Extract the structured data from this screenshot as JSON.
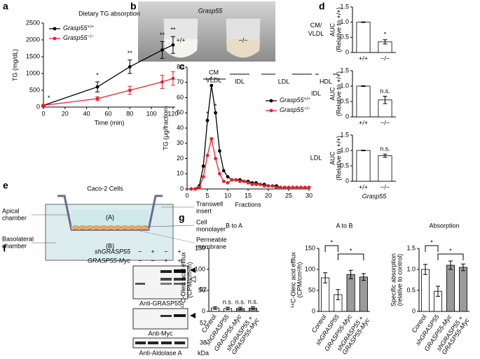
{
  "chart_data": [
    {
      "type": "line",
      "title": "Dietary TG absorption",
      "xlabel": "Time (min)",
      "ylabel": "TG (mg/dL)",
      "x": [
        0,
        50,
        80,
        110,
        120
      ],
      "xlim": [
        0,
        122
      ],
      "xticks": [
        0,
        20,
        40,
        60,
        80,
        100,
        120
      ],
      "ylim": [
        0,
        2500
      ],
      "yticks": [
        0,
        500,
        1000,
        1500,
        2000,
        2500
      ],
      "legend": "upper left",
      "series": [
        {
          "name": "Grasp55",
          "genotype": "+/+",
          "color": "#000000",
          "values": [
            50,
            600,
            1200,
            1700,
            1850
          ],
          "errors": [
            20,
            150,
            200,
            250,
            250
          ]
        },
        {
          "name": "Grasp55",
          "genotype": "−/−",
          "color": "#e8202a",
          "values": [
            50,
            250,
            500,
            750,
            850
          ],
          "errors": [
            20,
            60,
            120,
            200,
            200
          ]
        }
      ],
      "annotations": [
        {
          "x": 5,
          "text": "*"
        },
        {
          "x": 50,
          "text": "*"
        },
        {
          "x": 80,
          "text": "**"
        },
        {
          "x": 110,
          "text": "**"
        },
        {
          "x": 120,
          "text": "**"
        }
      ]
    },
    {
      "type": "line",
      "xlabel": "Fractions",
      "ylabel": "TG (µg/fraction)",
      "x": [
        1,
        2,
        3,
        4,
        5,
        6,
        7,
        8,
        9,
        10,
        11,
        12,
        13,
        14,
        15,
        16,
        17,
        18,
        19,
        20,
        21,
        22,
        23,
        24,
        25,
        26,
        27,
        28,
        29,
        30
      ],
      "xlim": [
        0,
        30
      ],
      "xticks": [
        0,
        5,
        10,
        15,
        20,
        25,
        30
      ],
      "ylim": [
        0,
        80
      ],
      "yticks": [
        0,
        10,
        20,
        30,
        40,
        50,
        60,
        70,
        80
      ],
      "legend": "right",
      "region_labels": [
        "CM",
        "VLDL",
        "IDL",
        "LDL",
        "HDL"
      ],
      "series": [
        {
          "name": "Grasp55",
          "genotype": "+/+",
          "color": "#000000",
          "values": [
            0,
            0,
            2,
            15,
            45,
            68,
            50,
            25,
            12,
            8,
            6,
            6,
            6,
            5,
            5,
            4,
            4,
            3,
            3,
            2,
            2,
            2,
            1,
            1,
            1,
            1,
            1,
            1,
            1,
            1
          ]
        },
        {
          "name": "Grasp55",
          "genotype": "−/−",
          "color": "#e8202a",
          "values": [
            0,
            0,
            1,
            8,
            22,
            33,
            20,
            10,
            5,
            4,
            6,
            6,
            5,
            5,
            4,
            3,
            3,
            3,
            2,
            2,
            2,
            1,
            1,
            1,
            1,
            1,
            1,
            1,
            1,
            1
          ]
        }
      ],
      "annotations": [
        {
          "x": 5,
          "text": "*"
        },
        {
          "x": 6,
          "text": "*"
        },
        {
          "x": 7,
          "text": "*"
        }
      ]
    },
    {
      "type": "bar",
      "row_label": [
        "CM/",
        "VLDL"
      ],
      "ylabel": [
        "AUC",
        "(Relative to +/+)"
      ],
      "categories": [
        "+/+",
        "−/−"
      ],
      "values": [
        1,
        0.35
      ],
      "errors": [
        0.01,
        0.07
      ],
      "colors": [
        "#ffffff",
        "#ffffff"
      ],
      "ylim": [
        0,
        1.5
      ],
      "yticks": [
        0,
        0.5,
        {
          "value": 1,
          "label": "1.0"
        },
        1.5
      ],
      "annotations": [
        {
          "category": "−/−",
          "text": "*"
        }
      ]
    },
    {
      "type": "bar",
      "row_label": [
        "IDL"
      ],
      "ylabel": [
        "AUC",
        "(Relative to +/+)"
      ],
      "categories": [
        "+/+",
        "−/−"
      ],
      "values": [
        1,
        0.55
      ],
      "errors": [
        0.01,
        0.12
      ],
      "colors": [
        "#ffffff",
        "#ffffff"
      ],
      "ylim": [
        0,
        1.5
      ],
      "yticks": [
        0,
        0.5,
        {
          "value": 1,
          "label": "1.0"
        },
        1.5
      ],
      "annotations": [
        {
          "category": "−/−",
          "text": "n.s."
        }
      ]
    },
    {
      "type": "bar",
      "row_label": [
        "LDL"
      ],
      "ylabel": [
        "AUC",
        "(Relative to +/+)"
      ],
      "xlabel": "Grasp55",
      "categories": [
        "+/+",
        "−/−"
      ],
      "values": [
        1,
        0.83
      ],
      "errors": [
        0.01,
        0.05
      ],
      "colors": [
        "#ffffff",
        "#ffffff"
      ],
      "ylim": [
        0,
        1.5
      ],
      "yticks": [
        0,
        0.5,
        {
          "value": 1,
          "label": "1.0"
        },
        1.5
      ],
      "annotations": [
        {
          "category": "−/−",
          "text": "n.s."
        }
      ]
    },
    {
      "type": "bar",
      "title": "B to A",
      "ylabel": [
        "¹⁴C-Oleic acid efflux",
        "(CPM/cm²/h)"
      ],
      "categories": [
        "Control",
        "shGRASP55",
        "GRASP55-Myc",
        "shGRASP55 + GRASP55-Myc"
      ],
      "values": [
        8,
        7,
        7,
        8
      ],
      "errors": [
        3,
        3,
        3,
        3
      ],
      "colors": [
        "#ffffff",
        "#ffffff",
        "#9b9b9b",
        "#9b9b9b"
      ],
      "ylim": [
        0,
        150
      ],
      "yticks": [
        0,
        50,
        100,
        150
      ],
      "annotations": [
        {
          "category": "shGRASP55",
          "text": "n.s."
        },
        {
          "category": "GRASP55-Myc",
          "text": "n.s."
        },
        {
          "category": "shGRASP55 + GRASP55-Myc",
          "text": "n.s."
        }
      ]
    },
    {
      "type": "bar",
      "title": "A to B",
      "ylabel": [
        "¹⁴C-Oleic acid efflux",
        "(CPM/cm²/h)"
      ],
      "categories": [
        "Control",
        "shGRASP55",
        "GRASP55-Myc",
        "shGRASP55 + GRASP55-Myc"
      ],
      "values": [
        80,
        40,
        88,
        82
      ],
      "errors": [
        12,
        12,
        10,
        8
      ],
      "colors": [
        "#ffffff",
        "#ffffff",
        "#9b9b9b",
        "#9b9b9b"
      ],
      "ylim": [
        0,
        150
      ],
      "yticks": [
        0,
        50,
        100,
        150
      ],
      "annotations": [
        {
          "from": "Control",
          "to": "shGRASP55",
          "text": "*"
        },
        {
          "from": "shGRASP55",
          "to": "shGRASP55 + GRASP55-Myc",
          "text": "*"
        }
      ]
    },
    {
      "type": "bar",
      "title": "Absorption",
      "ylabel": [
        "Specific absorption",
        "(relative to control)"
      ],
      "categories": [
        "Control",
        "shGRASP55",
        "GRASP55-Myc",
        "shGRASP55 + GRASP55-Myc"
      ],
      "values": [
        1.0,
        0.48,
        1.1,
        1.05
      ],
      "errors": [
        0.12,
        0.12,
        0.1,
        0.08
      ],
      "colors": [
        "#ffffff",
        "#ffffff",
        "#9b9b9b",
        "#9b9b9b"
      ],
      "ylim": [
        0,
        1.5
      ],
      "yticks": [
        0,
        0.5,
        {
          "value": 1,
          "label": "1.0"
        },
        1.5
      ],
      "annotations": [
        {
          "from": "Control",
          "to": "shGRASP55",
          "text": "*"
        },
        {
          "from": "shGRASP55",
          "to": "shGRASP55 + GRASP55-Myc",
          "text": "*"
        }
      ]
    }
  ],
  "photo": {
    "gene": "Grasp55",
    "left": "+/+",
    "right": "−/−"
  },
  "diagram": {
    "title": "Caco-2 Cells",
    "apical": [
      "Apical",
      "chamber"
    ],
    "basolateral": [
      "Basolateral",
      "chamber"
    ],
    "a": "(A)",
    "b": "(B)",
    "insert": [
      "Transwell",
      "insert"
    ],
    "monolayer": [
      "Cell",
      "monolayer"
    ],
    "membrane": [
      "Permeable",
      "membrane"
    ]
  },
  "blot": {
    "rows": [
      {
        "label": "shGRASP55",
        "signs": [
          "−",
          "+",
          "−",
          "+"
        ]
      },
      {
        "label": "GRASP55-Myc",
        "signs": [
          "−",
          "−",
          "+",
          "+"
        ]
      }
    ],
    "antibodies": [
      "Anti-GRASP55",
      "Anti-Myc",
      "Anti-Aldolase A"
    ],
    "markers": [
      52,
      52,
      38
    ],
    "unit": "kDa"
  },
  "panel_letters": [
    "a",
    "b",
    "c",
    "d",
    "e",
    "f",
    "g"
  ]
}
